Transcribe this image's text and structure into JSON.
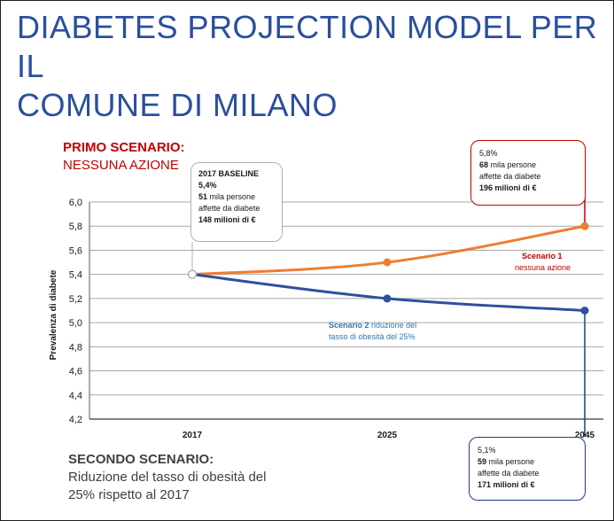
{
  "title": {
    "line1": "DIABETES PROJECTION MODEL PER IL",
    "line2": "COMUNE DI MILANO"
  },
  "scenario1": {
    "heading": "PRIMO SCENARIO:",
    "subheading": "NESSUNA AZIONE"
  },
  "scenario2": {
    "heading": "SECONDO SCENARIO:",
    "text_line1": "Riduzione del tasso di obesità del",
    "text_line2": "25% rispetto al 2017"
  },
  "callouts": {
    "baseline": {
      "title": "2017 BASELINE",
      "pct": "5,4%",
      "people_num": "51",
      "people_text": "mila persone",
      "affected": "affette da diabete",
      "cost_num": "148",
      "cost_text": "milioni di €"
    },
    "s1_2045": {
      "pct": "5,8%",
      "people_num": "68",
      "people_text": "mila persone",
      "affected": "affette da diabete",
      "cost_num": "196",
      "cost_text": "milioni di €"
    },
    "s2_2045": {
      "pct": "5,1%",
      "people_num": "59",
      "people_text": "mila persone",
      "affected": "affette da diabete",
      "cost_num": "171",
      "cost_text": "milioni di €"
    }
  },
  "series_notes": {
    "s1_name": "Scenario 1",
    "s1_desc": "nessuna azione",
    "s2_name": "Scenario 2",
    "s2_desc_a": "riduzione del",
    "s2_desc_b": "tasso di obesità del 25%"
  },
  "colors": {
    "scenario1": "#ed7d31",
    "scenario2": "#2f4f9f",
    "grid": "#a6a6a6",
    "axis": "#595959"
  },
  "chart_data": {
    "type": "line",
    "ylabel": "Prevalenza di diabete",
    "xlabel": "",
    "categories": [
      "2017",
      "2025",
      "2045"
    ],
    "ylim": [
      4.2,
      6.0
    ],
    "yticks": [
      "4,2",
      "4,4",
      "4,6",
      "4,8",
      "5,0",
      "5,2",
      "5,4",
      "5,6",
      "5,8",
      "6,0"
    ],
    "grid": true,
    "series": [
      {
        "name": "Scenario 1 nessuna azione",
        "values": [
          5.4,
          5.5,
          5.8
        ]
      },
      {
        "name": "Scenario 2 riduzione del tasso di obesità del 25%",
        "values": [
          5.4,
          5.2,
          5.1
        ]
      }
    ]
  }
}
